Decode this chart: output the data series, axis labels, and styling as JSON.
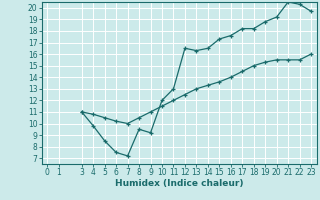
{
  "xlabel": "Humidex (Indice chaleur)",
  "bg_color": "#cceaea",
  "grid_color": "#ffffff",
  "line_color": "#1a6b6b",
  "curve1_x": [
    3,
    4,
    5,
    6,
    7,
    8,
    9,
    10,
    11,
    12,
    13,
    14,
    15,
    16,
    17,
    18,
    19,
    20,
    21,
    22,
    23
  ],
  "curve1_y": [
    11.0,
    9.8,
    8.5,
    7.5,
    7.2,
    9.5,
    9.2,
    12.0,
    13.0,
    16.5,
    16.3,
    16.5,
    17.3,
    17.6,
    18.2,
    18.2,
    18.8,
    19.2,
    20.5,
    20.3,
    19.7
  ],
  "curve2_x": [
    3,
    4,
    5,
    6,
    7,
    8,
    9,
    10,
    11,
    12,
    13,
    14,
    15,
    16,
    17,
    18,
    19,
    20,
    21,
    22,
    23
  ],
  "curve2_y": [
    11.0,
    10.8,
    10.5,
    10.2,
    10.0,
    10.5,
    11.0,
    11.5,
    12.0,
    12.5,
    13.0,
    13.3,
    13.6,
    14.0,
    14.5,
    15.0,
    15.3,
    15.5,
    15.5,
    15.5,
    16.0
  ],
  "xlim": [
    -0.5,
    23.5
  ],
  "ylim": [
    6.5,
    20.5
  ],
  "xticks": [
    0,
    1,
    3,
    4,
    5,
    6,
    7,
    8,
    9,
    10,
    11,
    12,
    13,
    14,
    15,
    16,
    17,
    18,
    19,
    20,
    21,
    22,
    23
  ],
  "yticks": [
    7,
    8,
    9,
    10,
    11,
    12,
    13,
    14,
    15,
    16,
    17,
    18,
    19,
    20
  ],
  "tick_fontsize": 5.5,
  "xlabel_fontsize": 6.5
}
